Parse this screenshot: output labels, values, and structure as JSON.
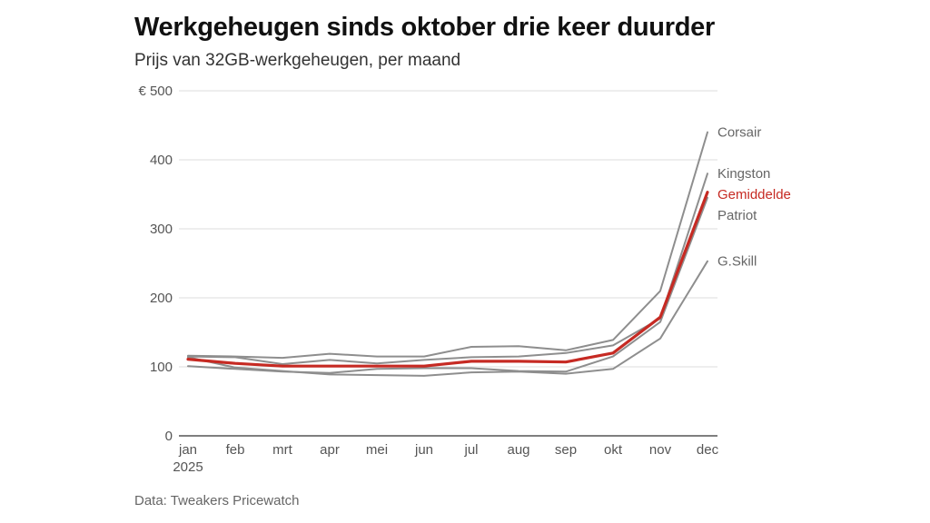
{
  "title": "Werkgeheugen sinds oktober drie keer duurder",
  "subtitle": "Prijs van 32GB-werkgeheugen, per maand",
  "source": "Data: Tweakers Pricewatch",
  "chart_data": {
    "type": "line",
    "x": [
      "jan",
      "feb",
      "mrt",
      "apr",
      "mei",
      "jun",
      "jul",
      "aug",
      "sep",
      "okt",
      "nov",
      "dec"
    ],
    "x_sublabel": "2025",
    "y_ticks": [
      "0",
      "100",
      "200",
      "300",
      "400",
      "€ 500"
    ],
    "ylim": [
      0,
      500
    ],
    "grid": true,
    "legend": "direct labels at line ends (right)",
    "series": [
      {
        "name": "Corsair",
        "color": "#8e8e8e",
        "values": [
          116,
          115,
          113,
          119,
          115,
          115,
          129,
          130,
          124,
          139,
          210,
          440
        ]
      },
      {
        "name": "Kingston",
        "color": "#8e8e8e",
        "values": [
          115,
          114,
          104,
          110,
          105,
          110,
          114,
          115,
          120,
          131,
          170,
          380
        ]
      },
      {
        "name": "Patriot",
        "color": "#8e8e8e",
        "values": [
          101,
          97,
          93,
          91,
          97,
          98,
          98,
          94,
          93,
          115,
          165,
          345
        ]
      },
      {
        "name": "G.Skill",
        "color": "#8e8e8e",
        "values": [
          114,
          99,
          94,
          89,
          88,
          87,
          92,
          93,
          90,
          97,
          141,
          253
        ]
      },
      {
        "name": "Gemiddelde",
        "color": "#c62a23",
        "highlight": true,
        "values": [
          111,
          105,
          101,
          101,
          101,
          101,
          108,
          108,
          107,
          120,
          172,
          353
        ]
      }
    ]
  }
}
